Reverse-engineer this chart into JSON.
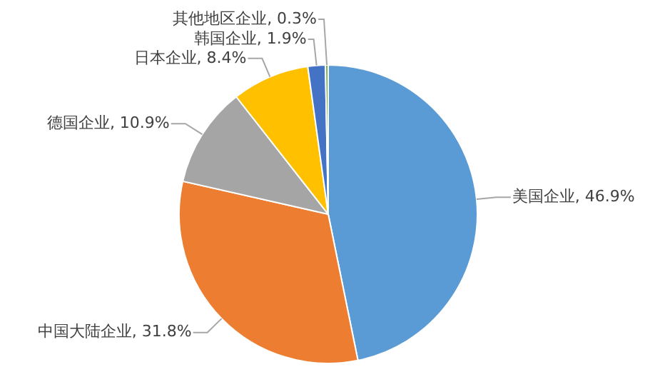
{
  "chart_data": {
    "type": "pie",
    "categories": [
      "美国企业",
      "中国大陆企业",
      "德国企业",
      "日本企业",
      "韩国企业",
      "其他地区企业"
    ],
    "values": [
      46.9,
      31.8,
      10.9,
      8.4,
      1.9,
      0.3
    ],
    "value_labels": [
      "46.9%",
      "31.8%",
      "10.9%",
      "8.4%",
      "1.9%",
      "0.3%"
    ],
    "colors": [
      "#5b9bd5",
      "#ed7d31",
      "#a5a5a5",
      "#ffc000",
      "#4472c4",
      "#70ad47"
    ],
    "legend": false
  }
}
